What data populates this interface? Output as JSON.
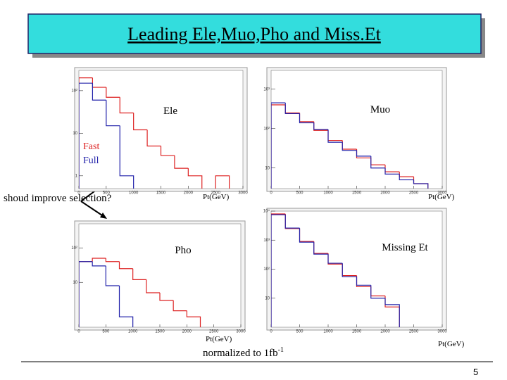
{
  "slide": {
    "title": "Leading Ele,Muo,Pho and Miss.Et",
    "question": "shoud improve selection?",
    "note": "normalized to 1fb",
    "note_sup": "-1",
    "page": "5"
  },
  "chart_data": [
    {
      "type": "histogram",
      "title": "Ele",
      "xlabel": "Pt(GeV)",
      "log_y": true,
      "legend": true,
      "bins": [
        0,
        250,
        500,
        750,
        1000,
        1250,
        1500,
        1750,
        2000,
        2250,
        2500,
        2750,
        3000
      ],
      "series": [
        {
          "name": "Fast",
          "color": "#dd2222",
          "values": [
            200,
            120,
            70,
            30,
            12,
            5,
            3,
            1.5,
            1,
            null,
            1,
            null
          ]
        },
        {
          "name": "Full",
          "color": "#2222aa",
          "values": [
            150,
            60,
            15,
            1,
            null,
            null,
            null,
            null,
            null,
            null,
            null,
            null
          ]
        }
      ],
      "xlim": [
        0,
        3000
      ],
      "xticks": [
        0,
        500,
        1000,
        1500,
        2000,
        2500,
        3000
      ],
      "ylim": [
        0.5,
        300
      ],
      "yticks": [
        {
          "value": 100,
          "label": "10²"
        },
        10,
        1
      ]
    },
    {
      "type": "histogram",
      "title": "Muo",
      "xlabel": "Pt(GeV)",
      "log_y": true,
      "bins": [
        0,
        250,
        500,
        750,
        1000,
        1250,
        1500,
        1750,
        2000,
        2250,
        2500,
        2750,
        3000
      ],
      "series": [
        {
          "color": "#dd2222",
          "values": [
            400,
            250,
            150,
            90,
            50,
            30,
            18,
            12,
            8,
            6,
            4,
            null
          ]
        },
        {
          "color": "#2222aa",
          "values": [
            450,
            240,
            140,
            95,
            45,
            28,
            20,
            10,
            7,
            5,
            4,
            null
          ]
        }
      ],
      "xlim": [
        0,
        3000
      ],
      "xticks": [
        0,
        500,
        1000,
        1500,
        2000,
        2500,
        3000
      ],
      "ylim": [
        3,
        3000
      ],
      "yticks": [
        {
          "value": 1000,
          "label": "10³"
        },
        {
          "value": 100,
          "label": "10²"
        },
        10
      ]
    },
    {
      "type": "histogram",
      "title": "Pho",
      "xlabel": "Pt(GeV)",
      "log_y": true,
      "bins": [
        0,
        250,
        500,
        750,
        1000,
        1250,
        1500,
        1750,
        2000,
        2250,
        2500,
        2750,
        3000
      ],
      "series": [
        {
          "color": "#dd2222",
          "values": [
            40,
            50,
            40,
            25,
            12,
            5,
            3,
            1.5,
            1,
            null,
            null,
            null
          ]
        },
        {
          "color": "#2222aa",
          "values": [
            40,
            30,
            8,
            1,
            null,
            null,
            null,
            null,
            null,
            null,
            null,
            null
          ]
        }
      ],
      "xlim": [
        0,
        3000
      ],
      "xticks": [
        0,
        500,
        1000,
        1500,
        2000,
        2500,
        3000
      ],
      "ylim": [
        0.5,
        500
      ],
      "yticks": [
        {
          "value": 100,
          "label": "10²"
        },
        10
      ]
    },
    {
      "type": "histogram",
      "title": "Missing Et",
      "xlabel": "Pt(GeV)",
      "log_y": true,
      "bins": [
        0,
        250,
        500,
        750,
        1000,
        1250,
        1500,
        1750,
        2000,
        2250,
        2500,
        2750,
        3000
      ],
      "series": [
        {
          "color": "#dd2222",
          "values": [
            8000,
            2500,
            900,
            350,
            150,
            60,
            25,
            12,
            5,
            null,
            null,
            null
          ]
        },
        {
          "color": "#2222aa",
          "values": [
            7500,
            2600,
            850,
            330,
            160,
            55,
            28,
            10,
            6,
            null,
            null,
            null
          ]
        }
      ],
      "xlim": [
        0,
        3000
      ],
      "xticks": [
        0,
        500,
        1000,
        1500,
        2000,
        2500,
        3000
      ],
      "ylim": [
        1,
        10000
      ],
      "yticks": [
        {
          "value": 10000,
          "label": "10⁴"
        },
        {
          "value": 1000,
          "label": "10³"
        },
        {
          "value": 100,
          "label": "10²"
        },
        10
      ]
    }
  ]
}
